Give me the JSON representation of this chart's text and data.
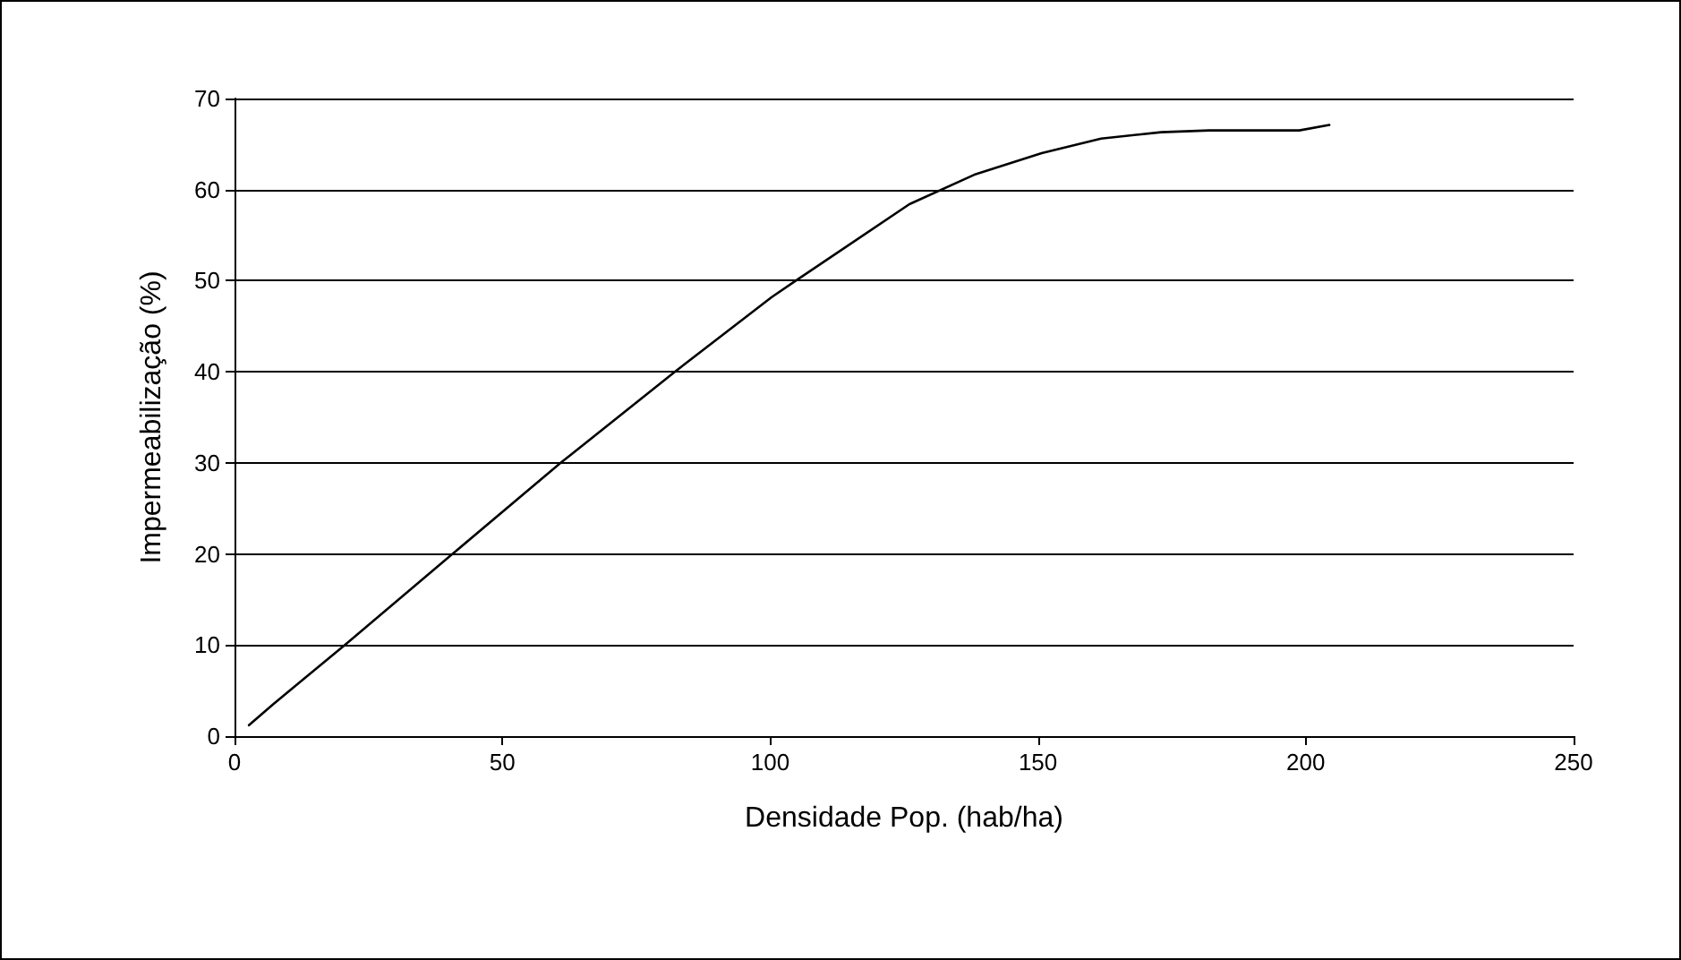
{
  "chart_data": {
    "type": "line",
    "xlabel": "Densidade Pop. (hab/ha)",
    "ylabel": "Impermeabilização (%)",
    "x": [
      2.7,
      7.2,
      20.6,
      40.7,
      60.9,
      82.2,
      100.3,
      104.8,
      126,
      138.4,
      150.7,
      161.8,
      173,
      182,
      198.8,
      204.4
    ],
    "series": [
      {
        "color": "#000000",
        "values": [
          1.2,
          3.5,
          10,
          20,
          30,
          40,
          48.2,
          50,
          58.4,
          61.7,
          64,
          65.6,
          66.3,
          66.5,
          66.5,
          67.1
        ]
      }
    ],
    "xlim": [
      0,
      250
    ],
    "xticks": [
      0,
      50,
      100,
      150,
      200,
      250
    ],
    "ylim": [
      0,
      70
    ],
    "yticks": [
      0,
      10,
      20,
      30,
      40,
      50,
      60,
      70
    ],
    "grid": "y",
    "marker": "none",
    "line_style": "solid"
  }
}
